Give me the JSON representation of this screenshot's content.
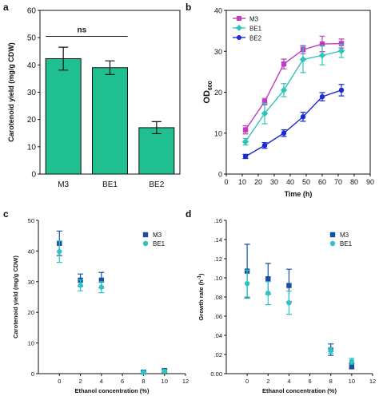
{
  "chart_data": [
    {
      "type": "bar",
      "panel": "a",
      "categories": [
        "M3",
        "BE1",
        "BE2"
      ],
      "series": [
        {
          "values": [
            42.3,
            39.0,
            17.0
          ],
          "errors": [
            4.2,
            2.5,
            2.2
          ],
          "color": "#1fbf8f"
        }
      ],
      "ylabel": "Carotenoid yield (mg/g CDW)",
      "xlabel": "",
      "ylim": [
        0,
        60
      ],
      "yticks": [
        0,
        10,
        20,
        30,
        40,
        50,
        60
      ],
      "annotation": {
        "text": "ns",
        "between": [
          "M3",
          "BE1"
        ],
        "y": 50.5
      },
      "grid": false
    },
    {
      "type": "line",
      "panel": "b",
      "x": [
        12,
        24,
        36,
        48,
        60,
        72
      ],
      "series": [
        {
          "name": "M3",
          "values": [
            10.8,
            17.7,
            26.9,
            30.4,
            31.8,
            31.9
          ],
          "errors": [
            1.0,
            0.8,
            1.2,
            1.0,
            1.9,
            1.1
          ],
          "color": "#c03cc0",
          "marker": "square"
        },
        {
          "name": "BE1",
          "values": [
            7.9,
            14.8,
            20.5,
            28.0,
            29.0,
            30.1
          ],
          "errors": [
            0.8,
            2.5,
            1.6,
            3.2,
            2.3,
            1.6
          ],
          "color": "#2ec4b6",
          "marker": "diamond"
        },
        {
          "name": "BE2",
          "values": [
            4.3,
            7.0,
            10.0,
            14.0,
            18.9,
            20.5
          ],
          "errors": [
            0.5,
            0.7,
            0.8,
            1.1,
            1.0,
            1.4
          ],
          "color": "#1a2bd6",
          "marker": "circle"
        }
      ],
      "xlabel": "Time (h)",
      "ylabel_main": "OD",
      "ylabel_sub": "600",
      "xlim": [
        0,
        90
      ],
      "xticks": [
        0,
        10,
        20,
        30,
        40,
        50,
        60,
        70,
        80,
        90
      ],
      "ylim": [
        0,
        40
      ],
      "yticks": [
        0,
        10,
        20,
        30,
        40
      ],
      "legend": "top-left",
      "grid": false
    },
    {
      "type": "scatter",
      "panel": "c",
      "x": [
        0,
        2,
        4,
        8,
        10
      ],
      "series": [
        {
          "name": "M3",
          "values": [
            42.5,
            30.5,
            30.5,
            0.5,
            1.0
          ],
          "errors": [
            4.0,
            2.0,
            2.5,
            0.3,
            0.5
          ],
          "color": "#1a4fa0",
          "marker": "square"
        },
        {
          "name": "BE1",
          "values": [
            39.8,
            28.8,
            28.2,
            0.4,
            0.8
          ],
          "errors": [
            3.5,
            1.8,
            1.8,
            0.3,
            0.4
          ],
          "color": "#2ec4c4",
          "marker": "circle"
        }
      ],
      "xlabel": "Ethanol concentration (%)",
      "ylabel": "Carotenoid yield (mg/g CDW)",
      "xlim": [
        -2,
        12
      ],
      "xticks": [
        0,
        2,
        4,
        6,
        8,
        10,
        12
      ],
      "ylim": [
        0,
        50
      ],
      "yticks": [
        0,
        10,
        20,
        30,
        40,
        50
      ],
      "legend": "top-right",
      "grid": false
    },
    {
      "type": "scatter",
      "panel": "d",
      "x": [
        0,
        2,
        4,
        8,
        10
      ],
      "series": [
        {
          "name": "M3",
          "values": [
            0.107,
            0.099,
            0.092,
            0.025,
            0.008
          ],
          "errors": [
            0.028,
            0.016,
            0.017,
            0.006,
            0.003
          ],
          "color": "#1a4fa0",
          "marker": "square"
        },
        {
          "name": "BE1",
          "values": [
            0.094,
            0.084,
            0.074,
            0.024,
            0.013
          ],
          "errors": [
            0.014,
            0.012,
            0.012,
            0.003,
            0.003
          ],
          "color": "#2ec4c4",
          "marker": "circle"
        }
      ],
      "xlabel": "Ethanol concentration (%)",
      "ylabel_main": "Growth rate (h",
      "ylabel_sup": "-1",
      "ylabel_end": ")",
      "xlim": [
        -2,
        12
      ],
      "xticks": [
        0,
        2,
        4,
        6,
        8,
        10,
        12
      ],
      "xtick_labels": [
        "0",
        "2",
        "4",
        "6",
        "8",
        "10",
        "12"
      ],
      "ylim": [
        0,
        0.16
      ],
      "yticks": [
        0,
        0.02,
        0.04,
        0.06,
        0.08,
        0.1,
        0.12,
        0.14,
        0.16
      ],
      "ytick_labels": [
        "0.00",
        ".02",
        ".04",
        ".06",
        ".08",
        ".10",
        ".12",
        ".14",
        ".16"
      ],
      "legend": "top-right",
      "grid": false
    }
  ],
  "panels": {
    "a": "a",
    "b": "b",
    "c": "c",
    "d": "d"
  }
}
